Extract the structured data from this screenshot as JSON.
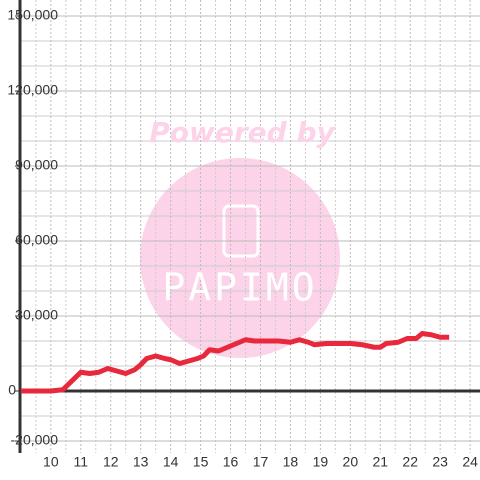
{
  "chart_data": {
    "type": "line",
    "x": [
      9.0,
      9.5,
      10.0,
      10.4,
      10.7,
      11.0,
      11.3,
      11.6,
      11.9,
      12.2,
      12.5,
      12.8,
      13.0,
      13.2,
      13.5,
      13.8,
      14.0,
      14.3,
      14.6,
      14.9,
      15.1,
      15.3,
      15.6,
      15.9,
      16.2,
      16.5,
      16.8,
      17.2,
      17.6,
      18.0,
      18.3,
      18.6,
      18.8,
      19.2,
      19.6,
      20.0,
      20.4,
      20.8,
      21.0,
      21.2,
      21.6,
      21.9,
      22.2,
      22.4,
      22.7,
      23.0,
      23.3
    ],
    "series": [
      {
        "color": "#e8283c",
        "values": [
          0,
          0,
          0,
          500,
          4000,
          7500,
          7000,
          7500,
          9000,
          8000,
          7000,
          8500,
          10500,
          13000,
          14000,
          13000,
          12500,
          11000,
          12000,
          13000,
          14000,
          16500,
          16000,
          17500,
          19000,
          20500,
          20000,
          20000,
          20000,
          19500,
          20500,
          19500,
          18500,
          19000,
          19000,
          19000,
          18500,
          17500,
          17500,
          19000,
          19500,
          21000,
          21000,
          23000,
          22500,
          21500,
          21500
        ]
      }
    ],
    "xlim": [
      8.97,
      24.33
    ],
    "xticks": [
      10,
      11,
      12,
      13,
      14,
      15,
      16,
      17,
      18,
      19,
      20,
      21,
      22,
      23,
      24
    ],
    "minor_xticks": [
      9.5,
      10.5,
      11.5,
      12.5,
      13.5,
      14.5,
      15.5,
      16.5,
      17.5,
      18.5,
      19.5,
      20.5,
      21.5,
      22.5,
      23.5
    ],
    "ylim": [
      -20000,
      155000
    ],
    "yticks": [
      {
        "value": -20000,
        "label": "-20,000"
      },
      0,
      {
        "value": 30000,
        "label": "30,000"
      },
      {
        "value": 60000,
        "label": "60,000"
      },
      {
        "value": 90000,
        "label": "90,000"
      },
      {
        "value": 120000,
        "label": "120,000"
      },
      {
        "value": 150000,
        "label": "150,000"
      }
    ],
    "minor_yticks": [
      -10000,
      10000,
      20000,
      40000,
      50000,
      70000,
      80000,
      100000,
      110000,
      130000,
      140000
    ],
    "grid": true,
    "watermark": [
      "Powered by",
      "PAPIMO"
    ]
  }
}
